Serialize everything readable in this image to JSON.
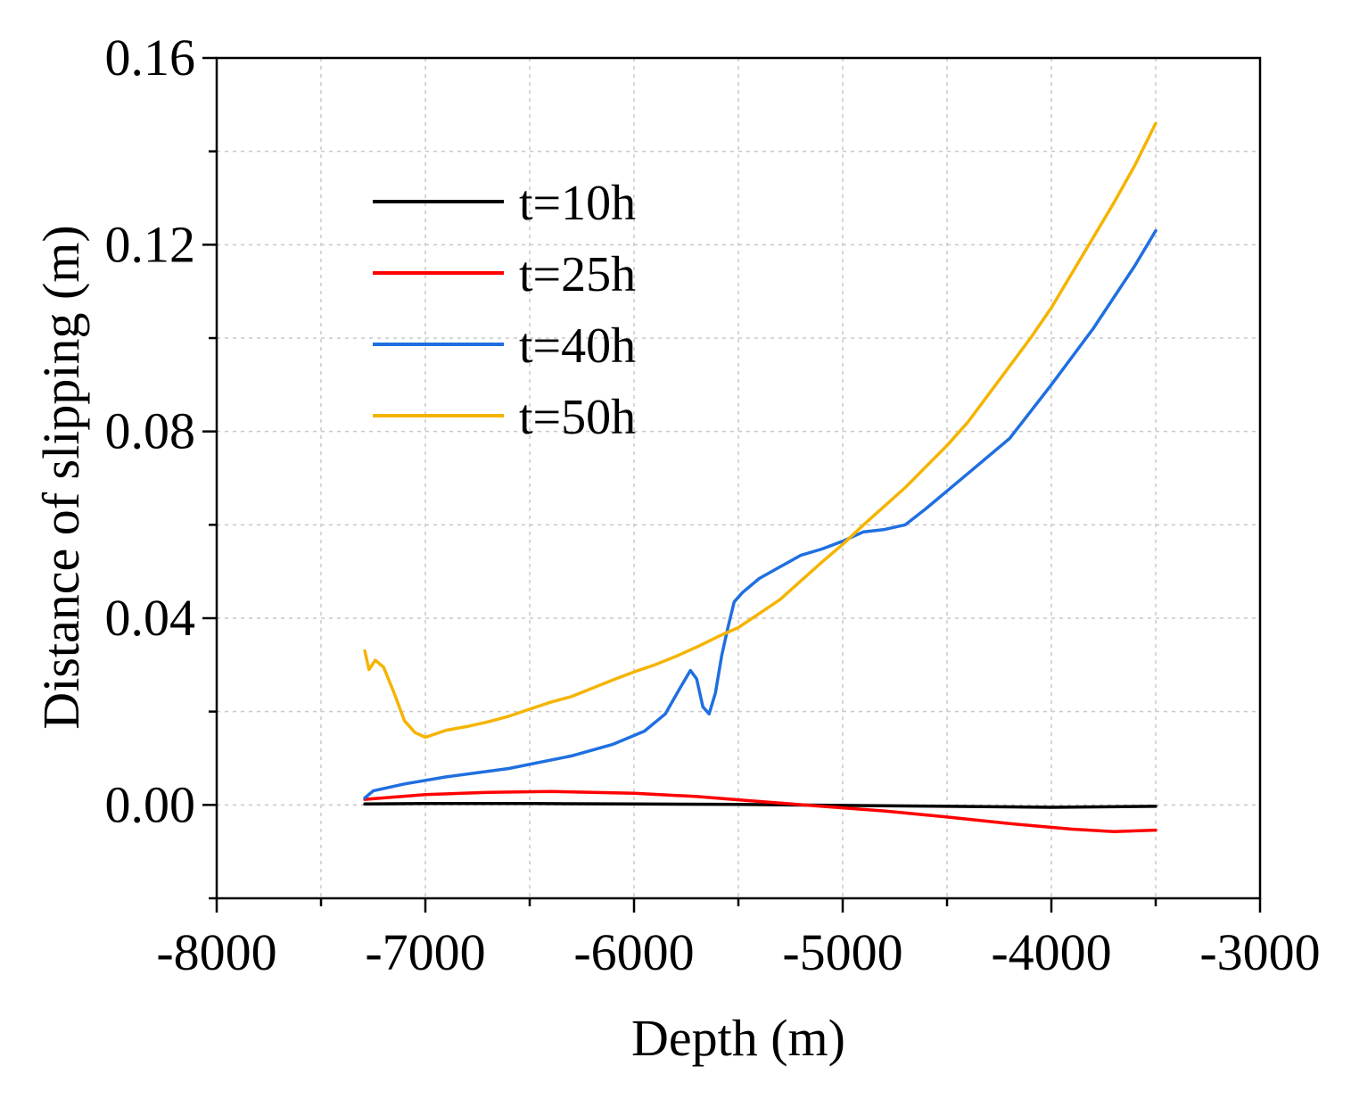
{
  "chart_data": {
    "type": "line",
    "title": "",
    "xlabel": "Depth (m)",
    "ylabel": "Distance of slipping (m)",
    "xlim": [
      -8000,
      -3000
    ],
    "ylim": [
      -0.02,
      0.16
    ],
    "xticks": [
      -8000,
      -7000,
      -6000,
      -5000,
      -4000,
      -3000
    ],
    "xtick_labels": [
      "-8000",
      "-7000",
      "-6000",
      "-5000",
      "-4000",
      "-3000"
    ],
    "xminor": [
      -7500,
      -6500,
      -5500,
      -4500,
      -3500
    ],
    "yticks": [
      0.0,
      0.04,
      0.08,
      0.12,
      0.16
    ],
    "ytick_labels": [
      "0.00",
      "0.04",
      "0.08",
      "0.12",
      "0.16"
    ],
    "yminor": [
      -0.02,
      0.02,
      0.06,
      0.1,
      0.14
    ],
    "grid": true,
    "legend_position": "upper-left",
    "series": [
      {
        "name": "t=10h",
        "color": "#000000",
        "x": [
          -7290,
          -7000,
          -6500,
          -6000,
          -5500,
          -5000,
          -4500,
          -4000,
          -3500
        ],
        "y": [
          0.0002,
          0.0003,
          0.0003,
          0.0002,
          0.0001,
          -0.0001,
          -0.0003,
          -0.0005,
          -0.0003
        ]
      },
      {
        "name": "t=25h",
        "color": "#ff0000",
        "x": [
          -7290,
          -7000,
          -6700,
          -6400,
          -6000,
          -5700,
          -5500,
          -5300,
          -5100,
          -4800,
          -4500,
          -4200,
          -3900,
          -3700,
          -3500
        ],
        "y": [
          0.0012,
          0.0022,
          0.0027,
          0.0029,
          0.0025,
          0.0018,
          0.0011,
          0.0004,
          -0.0003,
          -0.0013,
          -0.0026,
          -0.004,
          -0.0052,
          -0.0057,
          -0.0054
        ]
      },
      {
        "name": "t=40h",
        "color": "#1f6fe0",
        "x": [
          -7290,
          -7250,
          -7100,
          -6900,
          -6600,
          -6300,
          -6100,
          -5950,
          -5850,
          -5780,
          -5730,
          -5700,
          -5670,
          -5640,
          -5610,
          -5580,
          -5550,
          -5520,
          -5480,
          -5400,
          -5300,
          -5200,
          -5100,
          -5000,
          -4900,
          -4800,
          -4700,
          -4600,
          -4400,
          -4200,
          -4000,
          -3800,
          -3600,
          -3500
        ],
        "y": [
          0.0015,
          0.003,
          0.0045,
          0.006,
          0.0078,
          0.0105,
          0.013,
          0.0158,
          0.0195,
          0.025,
          0.0288,
          0.027,
          0.021,
          0.0195,
          0.024,
          0.032,
          0.038,
          0.0435,
          0.0455,
          0.0485,
          0.051,
          0.0535,
          0.0548,
          0.0565,
          0.0585,
          0.059,
          0.06,
          0.0635,
          0.071,
          0.0785,
          0.09,
          0.102,
          0.1155,
          0.123
        ]
      },
      {
        "name": "t=50h",
        "color": "#f5b400",
        "x": [
          -7290,
          -7270,
          -7240,
          -7200,
          -7150,
          -7100,
          -7050,
          -7000,
          -6900,
          -6800,
          -6700,
          -6600,
          -6500,
          -6400,
          -6300,
          -6200,
          -6100,
          -6000,
          -5900,
          -5800,
          -5700,
          -5600,
          -5500,
          -5400,
          -5300,
          -5200,
          -5100,
          -5000,
          -4900,
          -4800,
          -4700,
          -4600,
          -4500,
          -4400,
          -4300,
          -4200,
          -4100,
          -4000,
          -3900,
          -3800,
          -3700,
          -3600,
          -3500
        ],
        "y": [
          0.033,
          0.029,
          0.031,
          0.0295,
          0.024,
          0.018,
          0.0155,
          0.0145,
          0.016,
          0.0168,
          0.0178,
          0.019,
          0.0205,
          0.022,
          0.0232,
          0.025,
          0.0268,
          0.0285,
          0.03,
          0.0318,
          0.0338,
          0.036,
          0.038,
          0.041,
          0.044,
          0.048,
          0.052,
          0.0558,
          0.06,
          0.064,
          0.068,
          0.0725,
          0.077,
          0.082,
          0.088,
          0.094,
          0.1,
          0.1065,
          0.114,
          0.1215,
          0.129,
          0.137,
          0.146
        ]
      }
    ]
  }
}
